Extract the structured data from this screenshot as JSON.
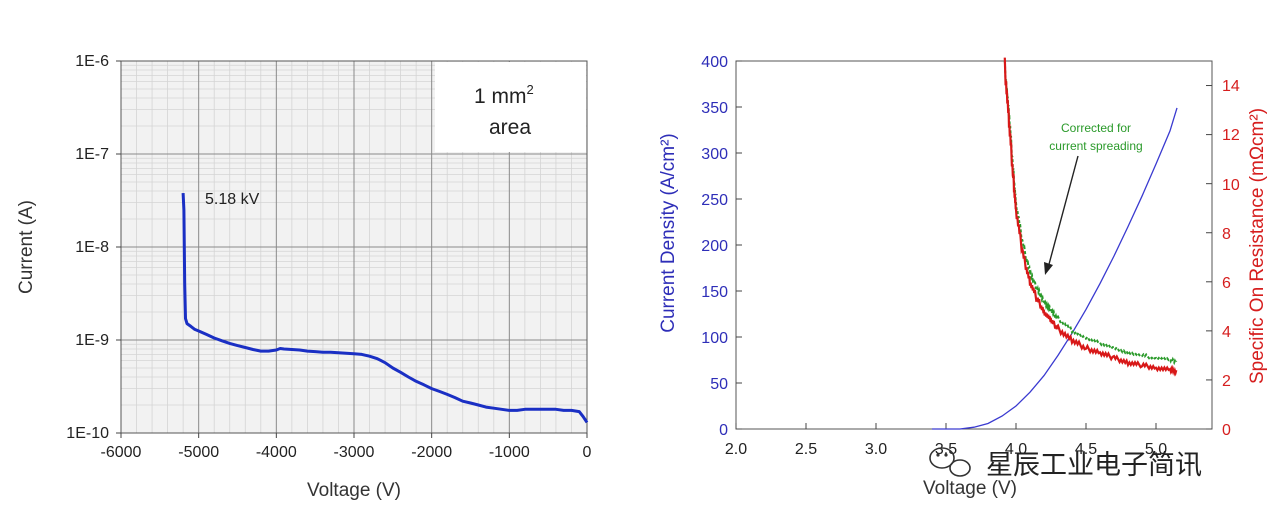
{
  "chart_data": [
    {
      "type": "line",
      "xlabel": "Voltage (V)",
      "ylabel": "Current (A)",
      "xlim": [
        -6000,
        0
      ],
      "ylim": [
        1e-10,
        1e-06
      ],
      "y_scale": "log",
      "grid": true,
      "x_ticks": [
        "-6000",
        "-5000",
        "-4000",
        "-3000",
        "-2000",
        "-1000",
        "0"
      ],
      "y_ticks": [
        "1E-10",
        "1E-9",
        "1E-8",
        "1E-7",
        "1E-6"
      ],
      "annotations": {
        "breakdown": "5.18 kV",
        "area_line1": "1 mm",
        "area_sup": "2",
        "area_line2": "area"
      },
      "series": [
        {
          "color": "#1a2fc4",
          "x": [
            -5200,
            -5190,
            -5185,
            -5180,
            -5170,
            -5150,
            -5100,
            -5050,
            -5000,
            -4900,
            -4800,
            -4700,
            -4600,
            -4500,
            -4400,
            -4300,
            -4200,
            -4100,
            -4000,
            -3950,
            -3900,
            -3800,
            -3700,
            -3600,
            -3500,
            -3400,
            -3300,
            -3200,
            -3100,
            -3000,
            -2900,
            -2800,
            -2700,
            -2600,
            -2500,
            -2400,
            -2300,
            -2200,
            -2100,
            -2000,
            -1900,
            -1800,
            -1700,
            -1600,
            -1500,
            -1400,
            -1300,
            -1200,
            -1100,
            -1000,
            -900,
            -800,
            -700,
            -600,
            -500,
            -400,
            -300,
            -200,
            -100,
            -50,
            0
          ],
          "y": [
            3.8e-08,
            2.5e-08,
            1e-08,
            4e-09,
            1.7e-09,
            1.5e-09,
            1.4e-09,
            1.3e-09,
            1.25e-09,
            1.15e-09,
            1.05e-09,
            9.8e-10,
            9.2e-10,
            8.7e-10,
            8.3e-10,
            7.9e-10,
            7.6e-10,
            7.6e-10,
            7.8e-10,
            8.1e-10,
            8e-10,
            7.9e-10,
            7.8e-10,
            7.6e-10,
            7.5e-10,
            7.4e-10,
            7.4e-10,
            7.3e-10,
            7.2e-10,
            7.1e-10,
            7e-10,
            6.7e-10,
            6.3e-10,
            5.7e-10,
            5e-10,
            4.5e-10,
            4e-10,
            3.6e-10,
            3.3e-10,
            3e-10,
            2.8e-10,
            2.6e-10,
            2.4e-10,
            2.2e-10,
            2.1e-10,
            2e-10,
            1.9e-10,
            1.85e-10,
            1.8e-10,
            1.75e-10,
            1.75e-10,
            1.8e-10,
            1.8e-10,
            1.8e-10,
            1.8e-10,
            1.8e-10,
            1.75e-10,
            1.75e-10,
            1.7e-10,
            1.5e-10,
            1.3e-10
          ]
        }
      ]
    },
    {
      "type": "line",
      "xlabel": "Voltage (V)",
      "ylabel": "Current Density (A/cm²)",
      "ylabel_right": "Specific On Resistance (mΩcm²)",
      "xlim": [
        2.0,
        5.4
      ],
      "ylim": [
        0,
        400
      ],
      "ylim_right": [
        0,
        15
      ],
      "grid": false,
      "x_ticks": [
        "2.0",
        "2.5",
        "3.0",
        "3.5",
        "4.0",
        "4.5",
        "5.0"
      ],
      "y_ticks": [
        "0",
        "50",
        "100",
        "150",
        "200",
        "250",
        "300",
        "350",
        "400"
      ],
      "y_ticks_right": [
        "0",
        "2",
        "4",
        "6",
        "8",
        "10",
        "12",
        "14"
      ],
      "annotations": {
        "corrected_line1": "Corrected for",
        "corrected_line2": "current spreading"
      },
      "series": [
        {
          "axis": "left",
          "color": "#3a3ad0",
          "x": [
            3.4,
            3.6,
            3.7,
            3.8,
            3.9,
            4.0,
            4.1,
            4.2,
            4.3,
            4.4,
            4.5,
            4.6,
            4.7,
            4.8,
            4.9,
            5.0,
            5.1,
            5.15
          ],
          "y": [
            0,
            0,
            2,
            6,
            14,
            25,
            40,
            58,
            80,
            104,
            130,
            158,
            188,
            220,
            253,
            288,
            324,
            349
          ]
        },
        {
          "axis": "right",
          "color": "#d81818",
          "x": [
            3.92,
            3.95,
            3.98,
            4.0,
            4.05,
            4.1,
            4.15,
            4.2,
            4.25,
            4.3,
            4.4,
            4.5,
            4.6,
            4.7,
            4.8,
            4.9,
            5.0,
            5.1,
            5.15
          ],
          "y": [
            14.8,
            12.5,
            10.3,
            8.9,
            7.1,
            6.0,
            5.3,
            4.8,
            4.4,
            4.1,
            3.6,
            3.3,
            3.1,
            2.9,
            2.7,
            2.6,
            2.5,
            2.4,
            2.35
          ]
        },
        {
          "axis": "right",
          "color": "#2a9a2a",
          "x": [
            3.92,
            3.95,
            3.98,
            4.0,
            4.05,
            4.1,
            4.15,
            4.2,
            4.25,
            4.3,
            4.4,
            4.5,
            4.6,
            4.7,
            4.8,
            4.9,
            5.0,
            5.1,
            5.15
          ],
          "y": [
            14.8,
            12.8,
            10.6,
            9.2,
            7.5,
            6.4,
            5.7,
            5.2,
            4.8,
            4.5,
            4.0,
            3.7,
            3.5,
            3.3,
            3.1,
            3.0,
            2.9,
            2.8,
            2.75
          ]
        }
      ]
    }
  ],
  "watermark": {
    "text": "星辰工业电子简讯",
    "icon": "wechat-icon"
  }
}
